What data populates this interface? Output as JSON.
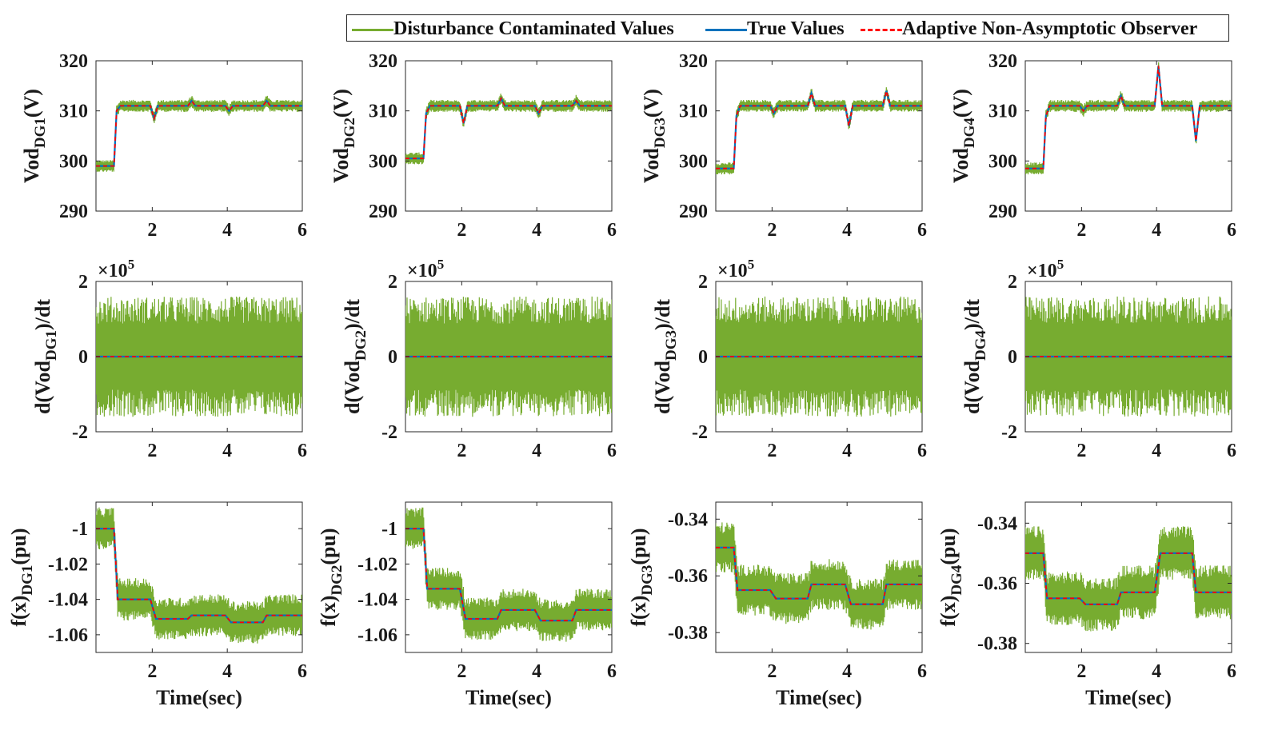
{
  "legend": {
    "entries": [
      {
        "label": "Disturbance Contaminated Values",
        "color": "#77AC30",
        "style": "solid"
      },
      {
        "label": "True Values",
        "color": "#0072BD",
        "style": "solid"
      },
      {
        "label": "Adaptive Non-Asymptotic Observer",
        "color": "#FF0000",
        "style": "dashed"
      }
    ]
  },
  "colors": {
    "noise": "#77AC30",
    "true": "#0072BD",
    "observer": "#FF0000"
  },
  "chart_data": [
    {
      "type": "line",
      "row": 1,
      "col": 1,
      "title": "",
      "ylabel": "Vod_DG1(V)",
      "ylabel_main": "Vod",
      "ylabel_sub": "DG1",
      "ylabel_suffix": "(V)",
      "xlabel": "",
      "xlim": [
        0.5,
        6
      ],
      "ylim": [
        290,
        320
      ],
      "xticks": [
        2,
        4,
        6
      ],
      "yticks": [
        290,
        300,
        310,
        320
      ],
      "multiplier": "",
      "noise_amplitude": 1.2,
      "series": [
        {
          "name": "True Values",
          "x": [
            0.5,
            0.98,
            1.05,
            1.15,
            1.95,
            2.05,
            2.15,
            2.95,
            3.05,
            3.15,
            3.95,
            4.05,
            4.15,
            4.95,
            5.05,
            5.15,
            6
          ],
          "values": [
            299,
            299,
            310,
            311,
            311,
            308.5,
            311,
            311,
            312,
            311,
            311,
            310,
            311,
            311,
            312,
            311,
            311
          ]
        }
      ]
    },
    {
      "type": "line",
      "row": 1,
      "col": 2,
      "title": "",
      "ylabel": "Vod_DG2(V)",
      "ylabel_main": "Vod",
      "ylabel_sub": "DG2",
      "ylabel_suffix": "(V)",
      "xlabel": "",
      "xlim": [
        0.5,
        6
      ],
      "ylim": [
        290,
        320
      ],
      "xticks": [
        2,
        4,
        6
      ],
      "yticks": [
        290,
        300,
        310,
        320
      ],
      "multiplier": "",
      "noise_amplitude": 1.2,
      "series": [
        {
          "name": "True Values",
          "x": [
            0.5,
            0.98,
            1.05,
            1.15,
            1.95,
            2.05,
            2.15,
            2.95,
            3.05,
            3.15,
            3.95,
            4.05,
            4.15,
            4.95,
            5.05,
            5.15,
            6
          ],
          "values": [
            300.5,
            300.5,
            309.5,
            311,
            311,
            307.5,
            311,
            311,
            312.5,
            311,
            311,
            309.5,
            311,
            311,
            312,
            311,
            311
          ]
        }
      ]
    },
    {
      "type": "line",
      "row": 1,
      "col": 3,
      "title": "",
      "ylabel": "Vod_DG3(V)",
      "ylabel_main": "Vod",
      "ylabel_sub": "DG3",
      "ylabel_suffix": "(V)",
      "xlabel": "",
      "xlim": [
        0.5,
        6
      ],
      "ylim": [
        290,
        320
      ],
      "xticks": [
        2,
        4,
        6
      ],
      "yticks": [
        290,
        300,
        310,
        320
      ],
      "multiplier": "",
      "noise_amplitude": 1.2,
      "series": [
        {
          "name": "True Values",
          "x": [
            0.5,
            0.98,
            1.05,
            1.15,
            1.95,
            2.05,
            2.15,
            2.95,
            3.05,
            3.15,
            3.95,
            4.05,
            4.15,
            4.95,
            5.05,
            5.15,
            6
          ],
          "values": [
            298.5,
            298.5,
            309,
            311,
            311,
            309.5,
            311,
            311,
            313.5,
            311,
            311,
            307,
            311,
            311,
            314,
            311,
            311
          ]
        }
      ]
    },
    {
      "type": "line",
      "row": 1,
      "col": 4,
      "title": "",
      "ylabel": "Vod_DG4(V)",
      "ylabel_main": "Vod",
      "ylabel_sub": "DG4",
      "ylabel_suffix": "(V)",
      "xlabel": "",
      "xlim": [
        0.5,
        6
      ],
      "ylim": [
        290,
        320
      ],
      "xticks": [
        2,
        4,
        6
      ],
      "yticks": [
        290,
        300,
        310,
        320
      ],
      "multiplier": "",
      "noise_amplitude": 1.2,
      "series": [
        {
          "name": "True Values",
          "x": [
            0.5,
            0.98,
            1.05,
            1.15,
            1.95,
            2.05,
            2.15,
            2.95,
            3.05,
            3.15,
            3.95,
            4.05,
            4.15,
            4.95,
            5.05,
            5.15,
            6
          ],
          "values": [
            298.5,
            298.5,
            309,
            311,
            311,
            310,
            311,
            311,
            313,
            311,
            311,
            319,
            311,
            311,
            304,
            311,
            311
          ]
        }
      ]
    },
    {
      "type": "line",
      "row": 2,
      "col": 1,
      "title": "",
      "ylabel": "d(Vod_DG1)/dt",
      "ylabel_main": "d(Vod",
      "ylabel_sub": "DG1",
      "ylabel_suffix": ")/dt",
      "xlabel": "",
      "xlim": [
        0.5,
        6
      ],
      "ylim": [
        -2,
        2
      ],
      "xticks": [
        2,
        4,
        6
      ],
      "yticks": [
        -2,
        0,
        2
      ],
      "multiplier": "×10",
      "multiplier_exp": "5",
      "noise_amplitude": 1.6,
      "series": [
        {
          "name": "True Values",
          "x": [
            0.5,
            6
          ],
          "values": [
            0,
            0
          ]
        }
      ]
    },
    {
      "type": "line",
      "row": 2,
      "col": 2,
      "title": "",
      "ylabel": "d(Vod_DG2)/dt",
      "ylabel_main": "d(Vod",
      "ylabel_sub": "DG2",
      "ylabel_suffix": ")/dt",
      "xlabel": "",
      "xlim": [
        0.5,
        6
      ],
      "ylim": [
        -2,
        2
      ],
      "xticks": [
        2,
        4,
        6
      ],
      "yticks": [
        -2,
        0,
        2
      ],
      "multiplier": "×10",
      "multiplier_exp": "5",
      "noise_amplitude": 1.6,
      "series": [
        {
          "name": "True Values",
          "x": [
            0.5,
            6
          ],
          "values": [
            0,
            0
          ]
        }
      ]
    },
    {
      "type": "line",
      "row": 2,
      "col": 3,
      "title": "",
      "ylabel": "d(Vod_DG3)/dt",
      "ylabel_main": "d(Vod",
      "ylabel_sub": "DG3",
      "ylabel_suffix": ")/dt",
      "xlabel": "",
      "xlim": [
        0.5,
        6
      ],
      "ylim": [
        -2,
        2
      ],
      "xticks": [
        2,
        4,
        6
      ],
      "yticks": [
        -2,
        0,
        2
      ],
      "multiplier": "×10",
      "multiplier_exp": "5",
      "noise_amplitude": 1.6,
      "series": [
        {
          "name": "True Values",
          "x": [
            0.5,
            6
          ],
          "values": [
            0,
            0
          ]
        }
      ]
    },
    {
      "type": "line",
      "row": 2,
      "col": 4,
      "title": "",
      "ylabel": "d(Vod_DG4)/dt",
      "ylabel_main": "d(Vod",
      "ylabel_sub": "DG4",
      "ylabel_suffix": ")/dt",
      "xlabel": "",
      "xlim": [
        0.5,
        6
      ],
      "ylim": [
        -2,
        2
      ],
      "xticks": [
        2,
        4,
        6
      ],
      "yticks": [
        -2,
        0,
        2
      ],
      "multiplier": "×10",
      "multiplier_exp": "5",
      "noise_amplitude": 1.6,
      "series": [
        {
          "name": "True Values",
          "x": [
            0.5,
            6
          ],
          "values": [
            0,
            0
          ]
        }
      ]
    },
    {
      "type": "line",
      "row": 3,
      "col": 1,
      "title": "",
      "ylabel": "f(x)_DG1(pu)",
      "ylabel_main": "f(x)",
      "ylabel_sub": "DG1",
      "ylabel_suffix": "(pu)",
      "xlabel": "Time(sec)",
      "xlim": [
        0.5,
        6
      ],
      "ylim": [
        -1.07,
        -0.985
      ],
      "xticks": [
        2,
        4,
        6
      ],
      "yticks": [
        -1.06,
        -1.04,
        -1.02,
        -1
      ],
      "multiplier": "",
      "noise_amplitude": 0.012,
      "series": [
        {
          "name": "True Values",
          "x": [
            0.5,
            0.98,
            1.08,
            1.95,
            2.1,
            2.95,
            3.05,
            3.95,
            4.1,
            4.95,
            5.05,
            6
          ],
          "values": [
            -1,
            -1,
            -1.04,
            -1.04,
            -1.051,
            -1.051,
            -1.049,
            -1.049,
            -1.053,
            -1.053,
            -1.049,
            -1.049
          ]
        }
      ]
    },
    {
      "type": "line",
      "row": 3,
      "col": 2,
      "title": "",
      "ylabel": "f(x)_DG2(pu)",
      "ylabel_main": "f(x)",
      "ylabel_sub": "DG2",
      "ylabel_suffix": "(pu)",
      "xlabel": "Time(sec)",
      "xlim": [
        0.5,
        6
      ],
      "ylim": [
        -1.07,
        -0.985
      ],
      "xticks": [
        2,
        4,
        6
      ],
      "yticks": [
        -1.06,
        -1.04,
        -1.02,
        -1
      ],
      "multiplier": "",
      "noise_amplitude": 0.012,
      "series": [
        {
          "name": "True Values",
          "x": [
            0.5,
            0.98,
            1.08,
            1.95,
            2.1,
            2.95,
            3.05,
            3.95,
            4.1,
            4.95,
            5.05,
            6
          ],
          "values": [
            -1,
            -1,
            -1.034,
            -1.034,
            -1.051,
            -1.051,
            -1.046,
            -1.046,
            -1.052,
            -1.052,
            -1.046,
            -1.046
          ]
        }
      ]
    },
    {
      "type": "line",
      "row": 3,
      "col": 3,
      "title": "",
      "ylabel": "f(x)_DG3(pu)",
      "ylabel_main": "f(x)",
      "ylabel_sub": "DG3",
      "ylabel_suffix": "(pu)",
      "xlabel": "Time(sec)",
      "xlim": [
        0.5,
        6
      ],
      "ylim": [
        -0.387,
        -0.334
      ],
      "xticks": [
        2,
        4,
        6
      ],
      "yticks": [
        -0.38,
        -0.36,
        -0.34
      ],
      "multiplier": "",
      "noise_amplitude": 0.009,
      "series": [
        {
          "name": "True Values",
          "x": [
            0.5,
            0.98,
            1.08,
            1.95,
            2.1,
            2.95,
            3.05,
            3.95,
            4.1,
            4.95,
            5.05,
            6
          ],
          "values": [
            -0.35,
            -0.35,
            -0.365,
            -0.365,
            -0.368,
            -0.368,
            -0.363,
            -0.363,
            -0.37,
            -0.37,
            -0.363,
            -0.363
          ]
        }
      ]
    },
    {
      "type": "line",
      "row": 3,
      "col": 4,
      "title": "",
      "ylabel": "f(x)_DG4(pu)",
      "ylabel_main": "f(x)",
      "ylabel_sub": "DG4",
      "ylabel_suffix": "(pu)",
      "xlabel": "Time(sec)",
      "xlim": [
        0.5,
        6
      ],
      "ylim": [
        -0.383,
        -0.333
      ],
      "xticks": [
        2,
        4,
        6
      ],
      "yticks": [
        -0.38,
        -0.36,
        -0.34
      ],
      "multiplier": "",
      "noise_amplitude": 0.009,
      "series": [
        {
          "name": "True Values",
          "x": [
            0.5,
            0.98,
            1.08,
            1.95,
            2.1,
            2.95,
            3.05,
            3.95,
            4.1,
            4.95,
            5.05,
            6
          ],
          "values": [
            -0.35,
            -0.35,
            -0.365,
            -0.365,
            -0.367,
            -0.367,
            -0.363,
            -0.363,
            -0.35,
            -0.35,
            -0.363,
            -0.363
          ]
        }
      ]
    }
  ]
}
